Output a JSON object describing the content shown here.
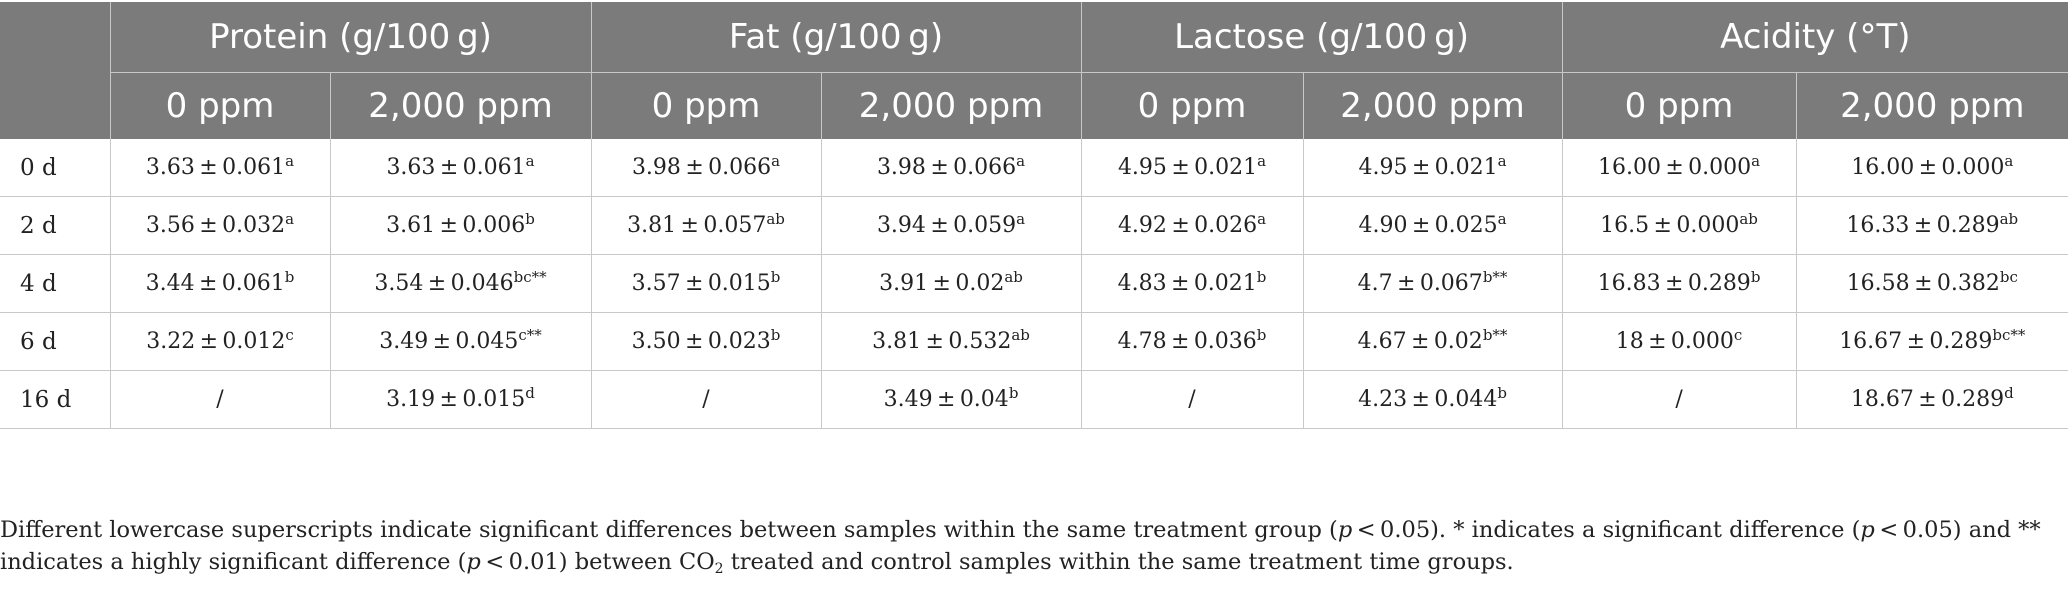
{
  "table": {
    "groups": [
      "Protein (g/100 g)",
      "Fat (g/100 g)",
      "Lactose (g/100 g)",
      "Acidity (°T)"
    ],
    "subheaders": [
      "0 ppm",
      "2,000 ppm",
      "0 ppm",
      "2,000 ppm",
      "0 ppm",
      "2,000 ppm",
      "0 ppm",
      "2,000 ppm"
    ],
    "rows": [
      {
        "label": "0 d",
        "cells": [
          {
            "v": "3.63 ± 0.061",
            "s": "a"
          },
          {
            "v": "3.63 ± 0.061",
            "s": "a"
          },
          {
            "v": "3.98 ± 0.066",
            "s": "a"
          },
          {
            "v": "3.98 ± 0.066",
            "s": "a"
          },
          {
            "v": "4.95 ± 0.021",
            "s": "a"
          },
          {
            "v": "4.95 ± 0.021",
            "s": "a"
          },
          {
            "v": "16.00 ± 0.000",
            "s": "a"
          },
          {
            "v": "16.00 ± 0.000",
            "s": "a"
          }
        ]
      },
      {
        "label": "2 d",
        "cells": [
          {
            "v": "3.56 ± 0.032",
            "s": "a"
          },
          {
            "v": "3.61 ± 0.006",
            "s": "b"
          },
          {
            "v": "3.81 ± 0.057",
            "s": "ab"
          },
          {
            "v": "3.94 ± 0.059",
            "s": "a"
          },
          {
            "v": "4.92 ± 0.026",
            "s": "a"
          },
          {
            "v": "4.90 ± 0.025",
            "s": "a"
          },
          {
            "v": "16.5 ± 0.000",
            "s": "ab"
          },
          {
            "v": "16.33 ± 0.289",
            "s": "ab"
          }
        ]
      },
      {
        "label": "4 d",
        "cells": [
          {
            "v": "3.44 ± 0.061",
            "s": "b"
          },
          {
            "v": "3.54 ± 0.046",
            "s": "bc**"
          },
          {
            "v": "3.57 ± 0.015",
            "s": "b"
          },
          {
            "v": "3.91 ± 0.02",
            "s": "ab"
          },
          {
            "v": "4.83 ± 0.021",
            "s": "b"
          },
          {
            "v": "4.7 ± 0.067",
            "s": "b**"
          },
          {
            "v": "16.83 ± 0.289",
            "s": "b"
          },
          {
            "v": "16.58 ± 0.382",
            "s": "bc"
          }
        ]
      },
      {
        "label": "6 d",
        "cells": [
          {
            "v": "3.22 ± 0.012",
            "s": "c"
          },
          {
            "v": "3.49 ± 0.045",
            "s": "c**"
          },
          {
            "v": "3.50 ± 0.023",
            "s": "b"
          },
          {
            "v": "3.81 ± 0.532",
            "s": "ab"
          },
          {
            "v": "4.78 ± 0.036",
            "s": "b"
          },
          {
            "v": "4.67 ± 0.02",
            "s": "b**"
          },
          {
            "v": "18 ± 0.000",
            "s": "c"
          },
          {
            "v": "16.67 ± 0.289",
            "s": "bc**"
          }
        ]
      },
      {
        "label": "16 d",
        "cells": [
          {
            "v": "/",
            "s": ""
          },
          {
            "v": "3.19 ± 0.015",
            "s": "d"
          },
          {
            "v": "/",
            "s": ""
          },
          {
            "v": "3.49 ± 0.04",
            "s": "b"
          },
          {
            "v": "/",
            "s": ""
          },
          {
            "v": "4.23 ± 0.044",
            "s": "b"
          },
          {
            "v": "/",
            "s": ""
          },
          {
            "v": "18.67 ± 0.289",
            "s": "d"
          }
        ]
      }
    ]
  },
  "footnote": {
    "seg1": "Different lowercase superscripts indicate significant differences between samples within the same treatment group (",
    "p1": "p",
    "seg2": " < 0.05). * indicates a significant difference (",
    "p2": "p",
    "seg3": " < 0.05) and ** indicates a highly significant difference (",
    "p3": "p",
    "seg4": " < 0.01) between CO",
    "sub": "2",
    "seg5": " treated and control samples within the same treatment time groups."
  }
}
